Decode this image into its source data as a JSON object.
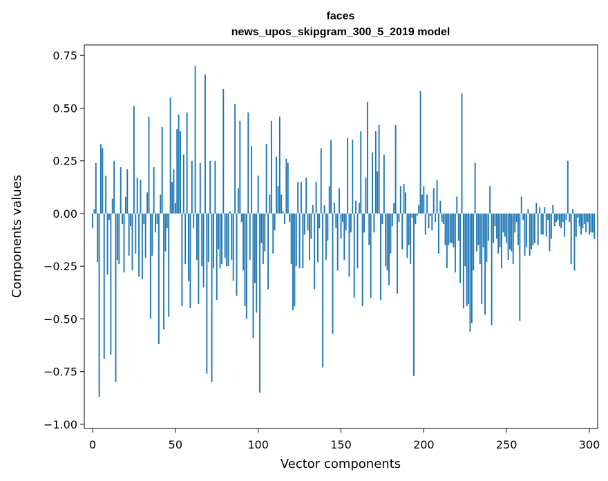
{
  "chart_data": {
    "type": "bar",
    "title": "faces",
    "subtitle": "news_upos_skipgram_300_5_2019 model",
    "xlabel": "Vector components",
    "ylabel": "Components values",
    "xlim": [
      -5,
      305
    ],
    "ylim": [
      -1.02,
      0.8
    ],
    "xticks": [
      0,
      50,
      100,
      150,
      200,
      250,
      300
    ],
    "xtick_labels": [
      "0",
      "50",
      "100",
      "150",
      "200",
      "250",
      "300"
    ],
    "yticks": [
      -1.0,
      -0.75,
      -0.5,
      -0.25,
      0.0,
      0.25,
      0.5,
      0.75
    ],
    "ytick_labels": [
      "−1.00",
      "−0.75",
      "−0.50",
      "−0.25",
      "0.00",
      "0.25",
      "0.50",
      "0.75"
    ],
    "grid": false,
    "bar_color": "#1f77b4",
    "series": [
      {
        "name": "faces",
        "values": [
          -0.07,
          0.02,
          0.24,
          -0.23,
          -0.87,
          0.33,
          0.31,
          -0.69,
          0.18,
          -0.29,
          -0.03,
          -0.67,
          0.07,
          0.25,
          -0.8,
          -0.22,
          -0.24,
          0.22,
          -0.05,
          -0.28,
          0.08,
          0.21,
          -0.2,
          -0.06,
          -0.27,
          0.51,
          -0.19,
          0.17,
          -0.3,
          0.16,
          -0.31,
          -0.05,
          -0.21,
          0.1,
          0.46,
          -0.5,
          -0.2,
          0.22,
          -0.09,
          -0.05,
          -0.62,
          0.09,
          0.41,
          -0.55,
          -0.18,
          -0.07,
          -0.49,
          0.55,
          0.15,
          0.21,
          0.05,
          0.4,
          0.47,
          0.39,
          -0.44,
          0.28,
          -0.24,
          0.48,
          -0.32,
          -0.45,
          0.25,
          -0.07,
          0.7,
          -0.22,
          -0.43,
          0.24,
          -0.25,
          -0.35,
          0.66,
          -0.76,
          -0.23,
          0.25,
          -0.8,
          -0.26,
          0.25,
          -0.41,
          -0.17,
          -0.26,
          -0.24,
          0.59,
          -0.21,
          -0.25,
          -0.25,
          0.01,
          -0.22,
          -0.32,
          0.52,
          -0.39,
          0.12,
          0.44,
          -0.04,
          -0.27,
          -0.44,
          -0.5,
          0.48,
          -0.22,
          0.32,
          -0.59,
          -0.33,
          -0.47,
          0.18,
          -0.85,
          -0.14,
          -0.24,
          -0.18,
          0.33,
          -0.36,
          0.09,
          0.44,
          -0.19,
          -0.08,
          0.27,
          0.13,
          0.46,
          0.09,
          0.01,
          -0.05,
          0.26,
          0.24,
          -0.04,
          -0.24,
          -0.46,
          -0.44,
          -0.25,
          0.15,
          -0.26,
          0.15,
          -0.26,
          -0.1,
          0.17,
          -0.08,
          -0.22,
          -0.12,
          0.04,
          -0.36,
          0.15,
          -0.23,
          -0.07,
          0.31,
          -0.73,
          0.04,
          -0.22,
          -0.13,
          0.13,
          0.35,
          -0.57,
          0.05,
          -0.07,
          -0.27,
          0.12,
          -0.12,
          -0.04,
          -0.22,
          -0.08,
          0.36,
          -0.3,
          -0.09,
          0.35,
          -0.4,
          0.06,
          -0.26,
          0.05,
          0.39,
          -0.44,
          -0.09,
          0.17,
          0.53,
          -0.15,
          -0.4,
          0.29,
          -0.09,
          0.39,
          0.2,
          0.42,
          -0.41,
          -0.05,
          0.28,
          -0.25,
          -0.27,
          -0.34,
          -0.19,
          -0.06,
          0.05,
          0.42,
          -0.38,
          -0.04,
          0.13,
          -0.17,
          0.14,
          0.1,
          -0.21,
          -0.15,
          -0.24,
          -0.02,
          -0.77,
          -0.05,
          -0.01,
          0.04,
          0.58,
          0.09,
          0.13,
          -0.1,
          0.09,
          -0.07,
          -0.01,
          -0.08,
          0.12,
          -0.04,
          0.16,
          -0.19,
          0.06,
          -0.04,
          -0.05,
          -0.15,
          -0.26,
          -0.15,
          -0.14,
          -0.14,
          -0.16,
          -0.28,
          0.08,
          -0.13,
          -0.33,
          0.57,
          -0.45,
          -0.25,
          -0.44,
          -0.43,
          -0.56,
          -0.52,
          -0.27,
          0.24,
          -0.18,
          -0.15,
          -0.24,
          -0.43,
          -0.16,
          -0.48,
          -0.23,
          -0.13,
          0.13,
          -0.53,
          -0.14,
          -0.06,
          -0.12,
          -0.19,
          -0.16,
          -0.26,
          -0.09,
          -0.11,
          -0.14,
          -0.22,
          -0.17,
          -0.18,
          -0.24,
          -0.09,
          -0.04,
          -0.15,
          -0.51,
          0.08,
          -0.03,
          -0.2,
          -0.16,
          0.02,
          -0.2,
          -0.17,
          -0.15,
          -0.14,
          0.05,
          -0.15,
          0.03,
          -0.1,
          -0.1,
          0.03,
          -0.11,
          -0.03,
          -0.18,
          -0.12,
          0.04,
          -0.06,
          -0.04,
          -0.03,
          -0.06,
          -0.07,
          -0.04,
          -0.11,
          -0.03,
          0.25,
          -0.04,
          -0.24,
          0.02,
          -0.27,
          -0.11,
          -0.02,
          -0.06,
          -0.1,
          -0.07,
          -0.05,
          -0.09,
          -0.04,
          -0.1,
          -0.09,
          -0.09,
          -0.12
        ]
      }
    ]
  }
}
